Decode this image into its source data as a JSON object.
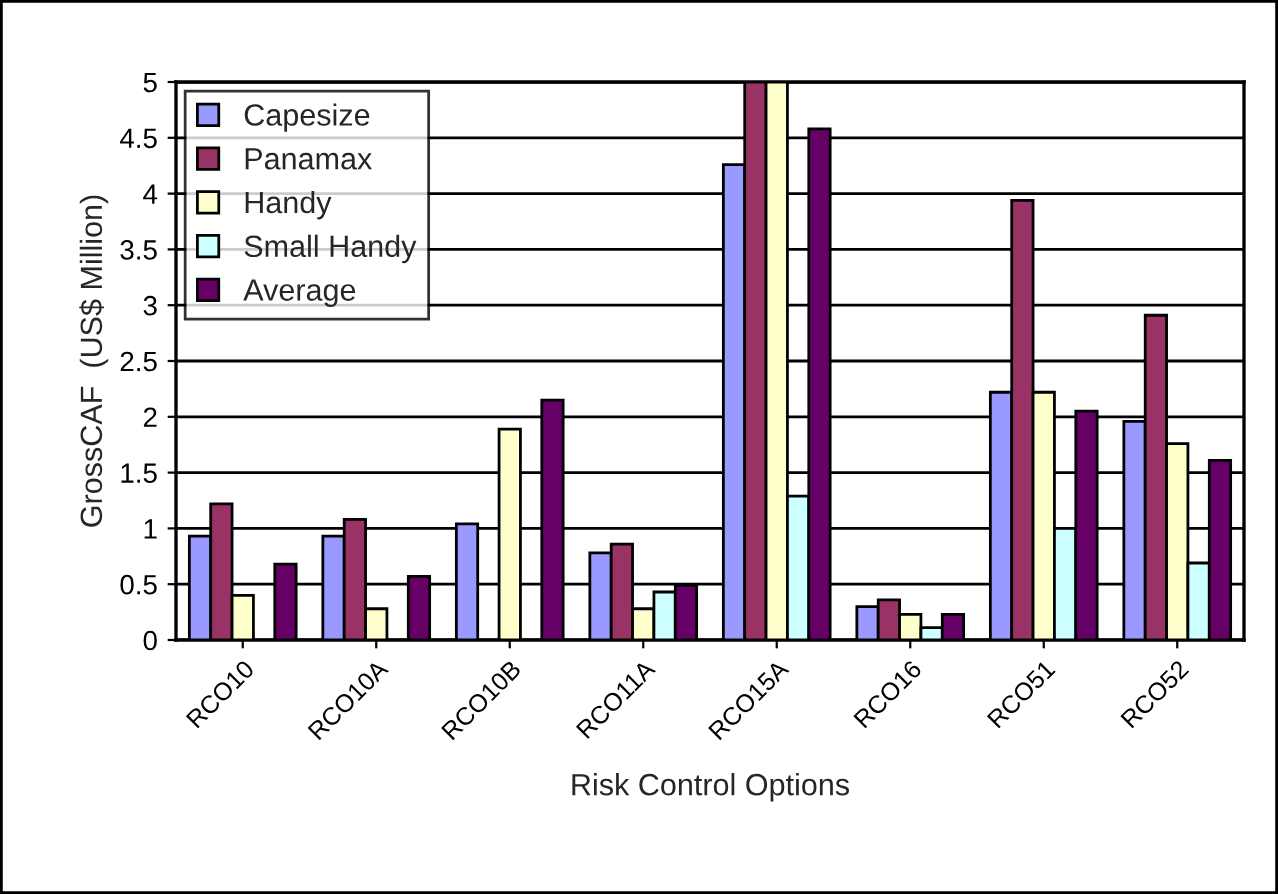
{
  "chart_data": {
    "type": "bar",
    "xlabel": "Risk Control Options",
    "ylabel": "GrossCAF  (US$ Million)",
    "categories": [
      "RCO10",
      "RCO10A",
      "RCO10B",
      "RCO11A",
      "RCO15A",
      "RCO16",
      "RCO51",
      "RCO52"
    ],
    "series": [
      {
        "name": "Capesize",
        "color": "#9999ff",
        "values": [
          0.93,
          0.93,
          1.04,
          0.78,
          4.26,
          0.3,
          2.22,
          1.96
        ]
      },
      {
        "name": "Panamax",
        "color": "#993366",
        "values": [
          1.22,
          1.08,
          null,
          0.86,
          5,
          0.36,
          3.94,
          2.91
        ]
      },
      {
        "name": "Handy",
        "color": "#ffffcc",
        "values": [
          0.4,
          0.28,
          1.89,
          0.28,
          5,
          0.23,
          2.22,
          1.76
        ]
      },
      {
        "name": "Small Handy",
        "color": "#ccffff",
        "values": [
          null,
          null,
          null,
          0.43,
          1.29,
          0.11,
          1.0,
          0.69
        ]
      },
      {
        "name": "Average",
        "color": "#660066",
        "values": [
          0.68,
          0.57,
          2.15,
          0.49,
          4.58,
          0.23,
          2.05,
          1.61
        ]
      }
    ],
    "ylim": [
      0,
      5
    ],
    "yticks": [
      0,
      0.5,
      1,
      1.5,
      2,
      2.5,
      3,
      3.5,
      4,
      4.5,
      5
    ],
    "grid": "y",
    "legend": "top left"
  }
}
